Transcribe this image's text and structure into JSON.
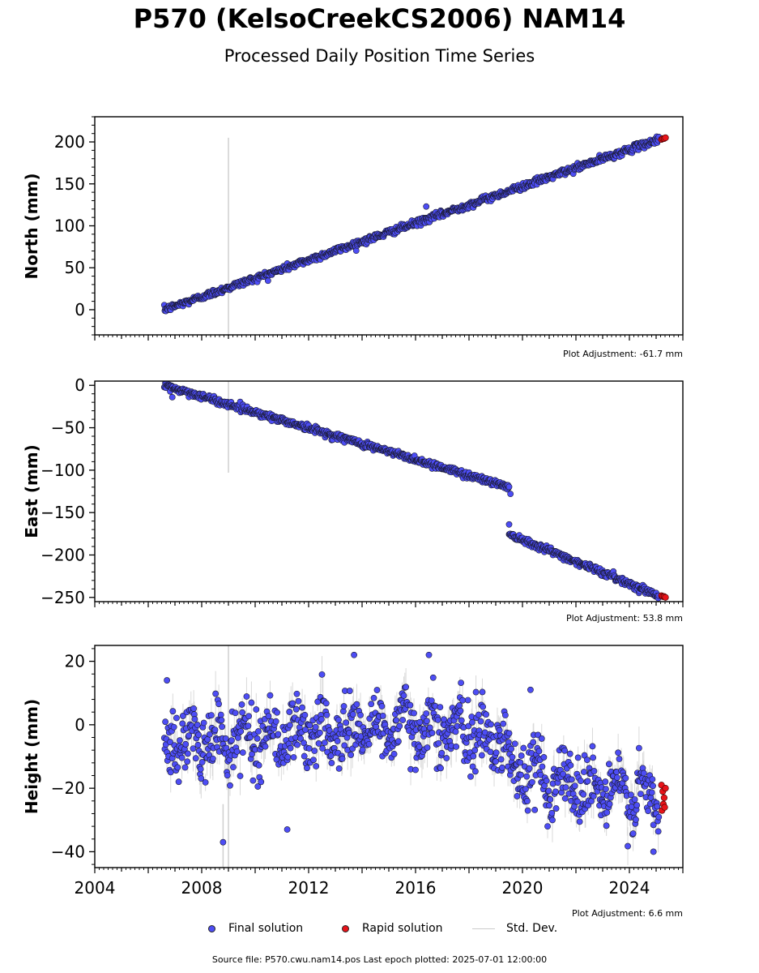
{
  "title": "P570 (KelsoCreekCS2006) NAM14",
  "subtitle": "Processed Daily Position Time Series",
  "legend": {
    "final": "Final solution",
    "rapid": "Rapid solution",
    "std": "Std. Dev."
  },
  "footer": "Source file: P570.cwu.nam14.pos  Last epoch plotted: 2025-07-01 12:00:00",
  "colors": {
    "final": "#4d4df5",
    "rapid": "#e8141a",
    "std": "#bbbbbb",
    "marker_edge": "#1a1a2e"
  },
  "chart_data": [
    {
      "type": "scatter",
      "ylabel": "North (mm)",
      "xlim": [
        2004,
        2026
      ],
      "ylim": [
        -30,
        230
      ],
      "yticks": [
        0,
        50,
        100,
        150,
        200
      ],
      "adjustment": "Plot Adjustment: -61.7 mm",
      "show_x_tick_labels": false,
      "series": [
        {
          "name": "Final solution",
          "segments": [
            {
              "x": [
                2006.6,
                2025.1
              ],
              "y": [
                0,
                203
              ]
            }
          ],
          "scatter": 2.0,
          "sigma": 1.5
        },
        {
          "name": "Rapid solution",
          "x": [
            2025.2,
            2025.25,
            2025.3,
            2025.35
          ],
          "y": [
            203,
            204,
            204,
            205
          ]
        }
      ],
      "outliers": [
        {
          "x": 2016.4,
          "y": 123
        }
      ],
      "bigsigma": [
        {
          "x": 2009.0,
          "y0": -30,
          "y1": 205
        }
      ]
    },
    {
      "type": "scatter",
      "ylabel": "East (mm)",
      "xlim": [
        2004,
        2026
      ],
      "ylim": [
        -255,
        5
      ],
      "yticks": [
        0,
        -50,
        -100,
        -150,
        -200,
        -250
      ],
      "adjustment": "Plot Adjustment: 53.8 mm",
      "show_x_tick_labels": false,
      "series": [
        {
          "name": "Final solution",
          "segments": [
            {
              "x": [
                2006.6,
                2019.5
              ],
              "y": [
                0,
                -120
              ]
            },
            {
              "x": [
                2019.5,
                2025.1
              ],
              "y": [
                -175,
                -248
              ]
            }
          ],
          "scatter": 2.0,
          "sigma": 1.5
        },
        {
          "name": "Rapid solution",
          "x": [
            2025.2,
            2025.25,
            2025.3,
            2025.35
          ],
          "y": [
            -248,
            -249,
            -249,
            -250
          ]
        }
      ],
      "outliers": [
        {
          "x": 2006.9,
          "y": -14
        },
        {
          "x": 2019.5,
          "y": -164
        },
        {
          "x": 2019.55,
          "y": -128
        }
      ],
      "bigsigma": [
        {
          "x": 2009.0,
          "y0": -103,
          "y1": 5
        }
      ]
    },
    {
      "type": "scatter",
      "ylabel": "Height (mm)",
      "xlim": [
        2004,
        2026
      ],
      "ylim": [
        -45,
        25
      ],
      "yticks": [
        20,
        0,
        -20,
        -40
      ],
      "xticks": [
        2004,
        2008,
        2012,
        2016,
        2020,
        2024
      ],
      "adjustment": "Plot Adjustment: 6.6 mm",
      "show_x_tick_labels": true,
      "series": [
        {
          "name": "Final solution",
          "segments": [
            {
              "x": [
                2006.6,
                2016.3
              ],
              "y": [
                -6,
                0
              ]
            },
            {
              "x": [
                2016.3,
                2019.5
              ],
              "y": [
                0,
                -5
              ]
            },
            {
              "x": [
                2019.5,
                2025.1
              ],
              "y": [
                -14,
                -24
              ]
            }
          ],
          "scatter": 5.0,
          "sigma": 4.0
        },
        {
          "name": "Rapid solution",
          "x": [
            2025.2,
            2025.22,
            2025.25,
            2025.27,
            2025.3,
            2025.32,
            2025.35
          ],
          "y": [
            -19,
            -27,
            -21,
            -25,
            -23,
            -26,
            -20
          ]
        }
      ],
      "outliers": [
        {
          "x": 2013.7,
          "y": 22
        },
        {
          "x": 2016.5,
          "y": 22
        },
        {
          "x": 2008.8,
          "y": -37
        },
        {
          "x": 2011.2,
          "y": -33
        },
        {
          "x": 2024.9,
          "y": -40
        },
        {
          "x": 2020.3,
          "y": 11
        },
        {
          "x": 2006.7,
          "y": 14
        }
      ],
      "bigsigma": [
        {
          "x": 2009.0,
          "y0": -45,
          "y1": 25
        },
        {
          "x": 2008.8,
          "y0": -45,
          "y1": -25
        }
      ]
    }
  ]
}
